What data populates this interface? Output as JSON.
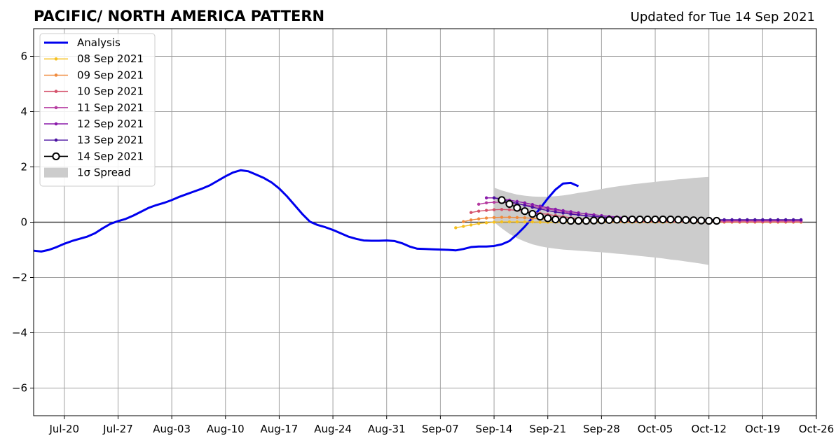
{
  "chart_data": {
    "type": "line",
    "title": "PACIFIC/ NORTH AMERICA PATTERN",
    "subtitle": "Updated for Tue 14 Sep 2021",
    "xlabel": "",
    "ylabel": "",
    "ylim": [
      -7,
      7
    ],
    "xlim": [
      "2021-07-16",
      "2021-10-26"
    ],
    "grid": true,
    "legend_placement": "top-left",
    "x_ticks": [
      "2021-07-20",
      "2021-07-27",
      "2021-08-03",
      "2021-08-10",
      "2021-08-17",
      "2021-08-24",
      "2021-08-31",
      "2021-09-07",
      "2021-09-14",
      "2021-09-21",
      "2021-09-28",
      "2021-10-05",
      "2021-10-12",
      "2021-10-19",
      "2021-10-26"
    ],
    "x_tick_labels": [
      "Jul-20",
      "Jul-27",
      "Aug-03",
      "Aug-10",
      "Aug-17",
      "Aug-24",
      "Aug-31",
      "Sep-07",
      "Sep-14",
      "Sep-21",
      "Sep-28",
      "Oct-05",
      "Oct-12",
      "Oct-19",
      "Oct-26"
    ],
    "y_ticks": [
      -6,
      -4,
      -2,
      0,
      2,
      4,
      6
    ],
    "y_tick_labels": [
      "−6",
      "−4",
      "−2",
      "0",
      "2",
      "4",
      "6"
    ],
    "analysis": {
      "name": "Analysis",
      "color": "#0000ee",
      "start_date": "2021-07-16",
      "values": [
        -1.03,
        -1.06,
        -1.0,
        -0.9,
        -0.78,
        -0.68,
        -0.6,
        -0.52,
        -0.4,
        -0.22,
        -0.06,
        0.04,
        0.12,
        0.24,
        0.38,
        0.52,
        0.62,
        0.7,
        0.8,
        0.92,
        1.02,
        1.12,
        1.22,
        1.34,
        1.5,
        1.66,
        1.8,
        1.88,
        1.84,
        1.72,
        1.6,
        1.44,
        1.22,
        0.94,
        0.62,
        0.3,
        0.02,
        -0.1,
        -0.18,
        -0.28,
        -0.4,
        -0.52,
        -0.6,
        -0.66,
        -0.67,
        -0.67,
        -0.66,
        -0.68,
        -0.76,
        -0.88,
        -0.96,
        -0.97,
        -0.98,
        -0.99,
        -1.0,
        -1.02,
        -0.97,
        -0.9,
        -0.88,
        -0.88,
        -0.86,
        -0.8,
        -0.68,
        -0.44,
        -0.16,
        0.16,
        0.5,
        0.86,
        1.18,
        1.4,
        1.42,
        1.3
      ]
    },
    "spread": {
      "name": "1σ Spread",
      "color": "#cccccc",
      "start_date": "2021-09-14",
      "upper": [
        1.25,
        1.15,
        1.07,
        1.0,
        0.96,
        0.93,
        0.92,
        0.92,
        0.94,
        0.97,
        1.01,
        1.06,
        1.1,
        1.15,
        1.2,
        1.25,
        1.29,
        1.33,
        1.37,
        1.4,
        1.43,
        1.46,
        1.49,
        1.52,
        1.55,
        1.57,
        1.6,
        1.62,
        1.64
      ],
      "lower": [
        -0.0,
        -0.22,
        -0.42,
        -0.58,
        -0.7,
        -0.8,
        -0.87,
        -0.92,
        -0.96,
        -0.99,
        -1.01,
        -1.03,
        -1.05,
        -1.07,
        -1.09,
        -1.11,
        -1.14,
        -1.16,
        -1.19,
        -1.22,
        -1.25,
        -1.28,
        -1.31,
        -1.35,
        -1.38,
        -1.42,
        -1.46,
        -1.5,
        -1.55
      ]
    },
    "forecasts": [
      {
        "name": "08 Sep 2021",
        "color": "#f5c020",
        "start_date": "2021-09-09",
        "values": [
          -0.2,
          -0.15,
          -0.1,
          -0.05,
          -0.02,
          0.0,
          0.01,
          0.01,
          0.01,
          0.01,
          0.01,
          0.0,
          0.0,
          0.0,
          0.0,
          0.0,
          0.0,
          0.0,
          0.0,
          0.0,
          0.0,
          0.0,
          0.0,
          0.0,
          0.0,
          0.0,
          0.0,
          0.0,
          0.0,
          0.0,
          0.0,
          0.0,
          0.0,
          0.0,
          0.0,
          0.0,
          0.0,
          0.0,
          0.0,
          0.0,
          0.0,
          0.0,
          0.0,
          0.0,
          0.0,
          0.0
        ]
      },
      {
        "name": "09 Sep 2021",
        "color": "#f08a3c",
        "start_date": "2021-09-10",
        "values": [
          0.02,
          0.08,
          0.12,
          0.15,
          0.17,
          0.18,
          0.18,
          0.17,
          0.16,
          0.14,
          0.12,
          0.1,
          0.08,
          0.06,
          0.05,
          0.04,
          0.03,
          0.02,
          0.02,
          0.01,
          0.01,
          0.01,
          0.01,
          0.01,
          0.01,
          0.01,
          0.01,
          0.01,
          0.01,
          0.01,
          0.01,
          0.01,
          0.01,
          0.01,
          0.01,
          0.01,
          0.01,
          0.01,
          0.01,
          0.01,
          0.01,
          0.01,
          0.01,
          0.01,
          0.01
        ]
      },
      {
        "name": "10 Sep 2021",
        "color": "#d4506a",
        "start_date": "2021-09-11",
        "values": [
          0.35,
          0.4,
          0.43,
          0.45,
          0.46,
          0.45,
          0.43,
          0.4,
          0.36,
          0.32,
          0.28,
          0.24,
          0.2,
          0.16,
          0.13,
          0.1,
          0.08,
          0.06,
          0.05,
          0.04,
          0.03,
          0.03,
          0.02,
          0.02,
          0.02,
          0.02,
          0.01,
          0.01,
          0.01,
          0.01,
          0.01,
          0.01,
          0.01,
          0.01,
          0.01,
          0.01,
          0.01,
          0.01,
          0.01,
          0.01,
          0.01,
          0.01,
          0.01,
          0.01
        ]
      },
      {
        "name": "11 Sep 2021",
        "color": "#b53aa0",
        "start_date": "2021-09-12",
        "values": [
          0.65,
          0.7,
          0.72,
          0.72,
          0.7,
          0.67,
          0.63,
          0.58,
          0.53,
          0.48,
          0.43,
          0.38,
          0.33,
          0.28,
          0.24,
          0.2,
          0.17,
          0.14,
          0.12,
          0.1,
          0.09,
          0.08,
          0.07,
          0.06,
          0.06,
          0.05,
          0.05,
          0.05,
          0.05,
          0.05,
          0.05,
          0.05,
          0.05,
          0.05,
          0.05,
          0.05,
          0.05,
          0.05,
          0.05,
          0.05,
          0.05,
          0.05,
          0.05
        ]
      },
      {
        "name": "12 Sep 2021",
        "color": "#8a1aaa",
        "start_date": "2021-09-13",
        "values": [
          0.88,
          0.88,
          0.85,
          0.8,
          0.75,
          0.7,
          0.64,
          0.58,
          0.52,
          0.47,
          0.42,
          0.38,
          0.34,
          0.3,
          0.27,
          0.24,
          0.21,
          0.19,
          0.17,
          0.15,
          0.13,
          0.12,
          0.11,
          0.1,
          0.09,
          0.09,
          0.08,
          0.08,
          0.08,
          0.08,
          0.08,
          0.08,
          0.08,
          0.08,
          0.08,
          0.08,
          0.08,
          0.08,
          0.08,
          0.08,
          0.08,
          0.08
        ]
      },
      {
        "name": "13 Sep 2021",
        "color": "#4a10a0",
        "start_date": "2021-09-14",
        "values": [
          0.88,
          0.82,
          0.75,
          0.68,
          0.61,
          0.54,
          0.48,
          0.42,
          0.37,
          0.33,
          0.29,
          0.26,
          0.23,
          0.21,
          0.19,
          0.17,
          0.15,
          0.14,
          0.13,
          0.12,
          0.11,
          0.1,
          0.1,
          0.09,
          0.09,
          0.09,
          0.09,
          0.09,
          0.09,
          0.09,
          0.09,
          0.09,
          0.09,
          0.09,
          0.09,
          0.09,
          0.09,
          0.09,
          0.09,
          0.09,
          0.09
        ]
      },
      {
        "name": "14 Sep 2021",
        "color": "#000000",
        "start_date": "2021-09-15",
        "values": [
          0.8,
          0.66,
          0.52,
          0.4,
          0.3,
          0.2,
          0.14,
          0.1,
          0.07,
          0.05,
          0.05,
          0.05,
          0.06,
          0.07,
          0.08,
          0.09,
          0.1,
          0.1,
          0.1,
          0.1,
          0.1,
          0.1,
          0.1,
          0.09,
          0.08,
          0.07,
          0.06,
          0.05,
          0.05
        ]
      }
    ]
  }
}
